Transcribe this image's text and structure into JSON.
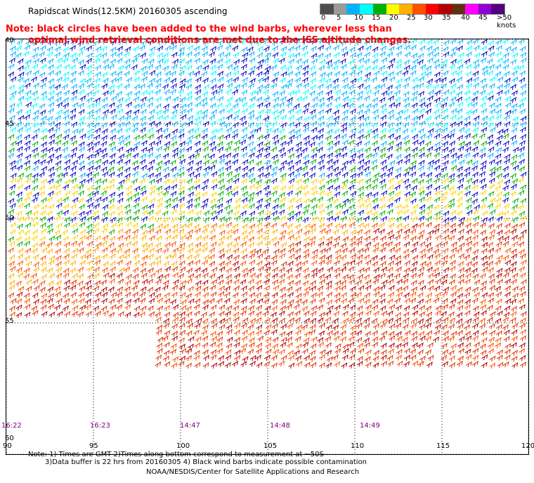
{
  "title": "Rapidscat Winds(12.5KM) 20160305 ascending",
  "note_line1": "Note: black circles have been added to the wind barbs, wherever less than",
  "note_line2": "optimal wind retrieval conditions are met due to the ISS altitude changes.",
  "legend": {
    "colors": [
      "#4d4d4d",
      "#9a9a9a",
      "#00b4ff",
      "#00ffff",
      "#00b000",
      "#ffff00",
      "#ffb000",
      "#ff5000",
      "#ff0000",
      "#b00000",
      "#603010",
      "#ff00ff",
      "#9000d0",
      "#500080"
    ],
    "labels": [
      "0",
      "5",
      "10",
      "15",
      "20",
      "25",
      "30",
      "35",
      "40",
      "45",
      ">50 knots"
    ]
  },
  "lat_labels": [
    "40",
    "45",
    "50",
    "55",
    "60"
  ],
  "lon_labels": [
    "90",
    "95",
    "100",
    "105",
    "110",
    "115",
    "120"
  ],
  "time_labels": [
    "16:22",
    "16:23",
    "14:47",
    "14:48",
    "14:49"
  ],
  "footnote_line1": "Note: 1) Times are GMT 2)Times along bottom correspond to measurement at ~50S",
  "footnote_line2": "3)Data buffer is 22 hrs from 20160305 4) Black wind barbs indicate possible contamination",
  "credit": "NOAA/NESDIS/Center for Satellite Applications and Research"
}
